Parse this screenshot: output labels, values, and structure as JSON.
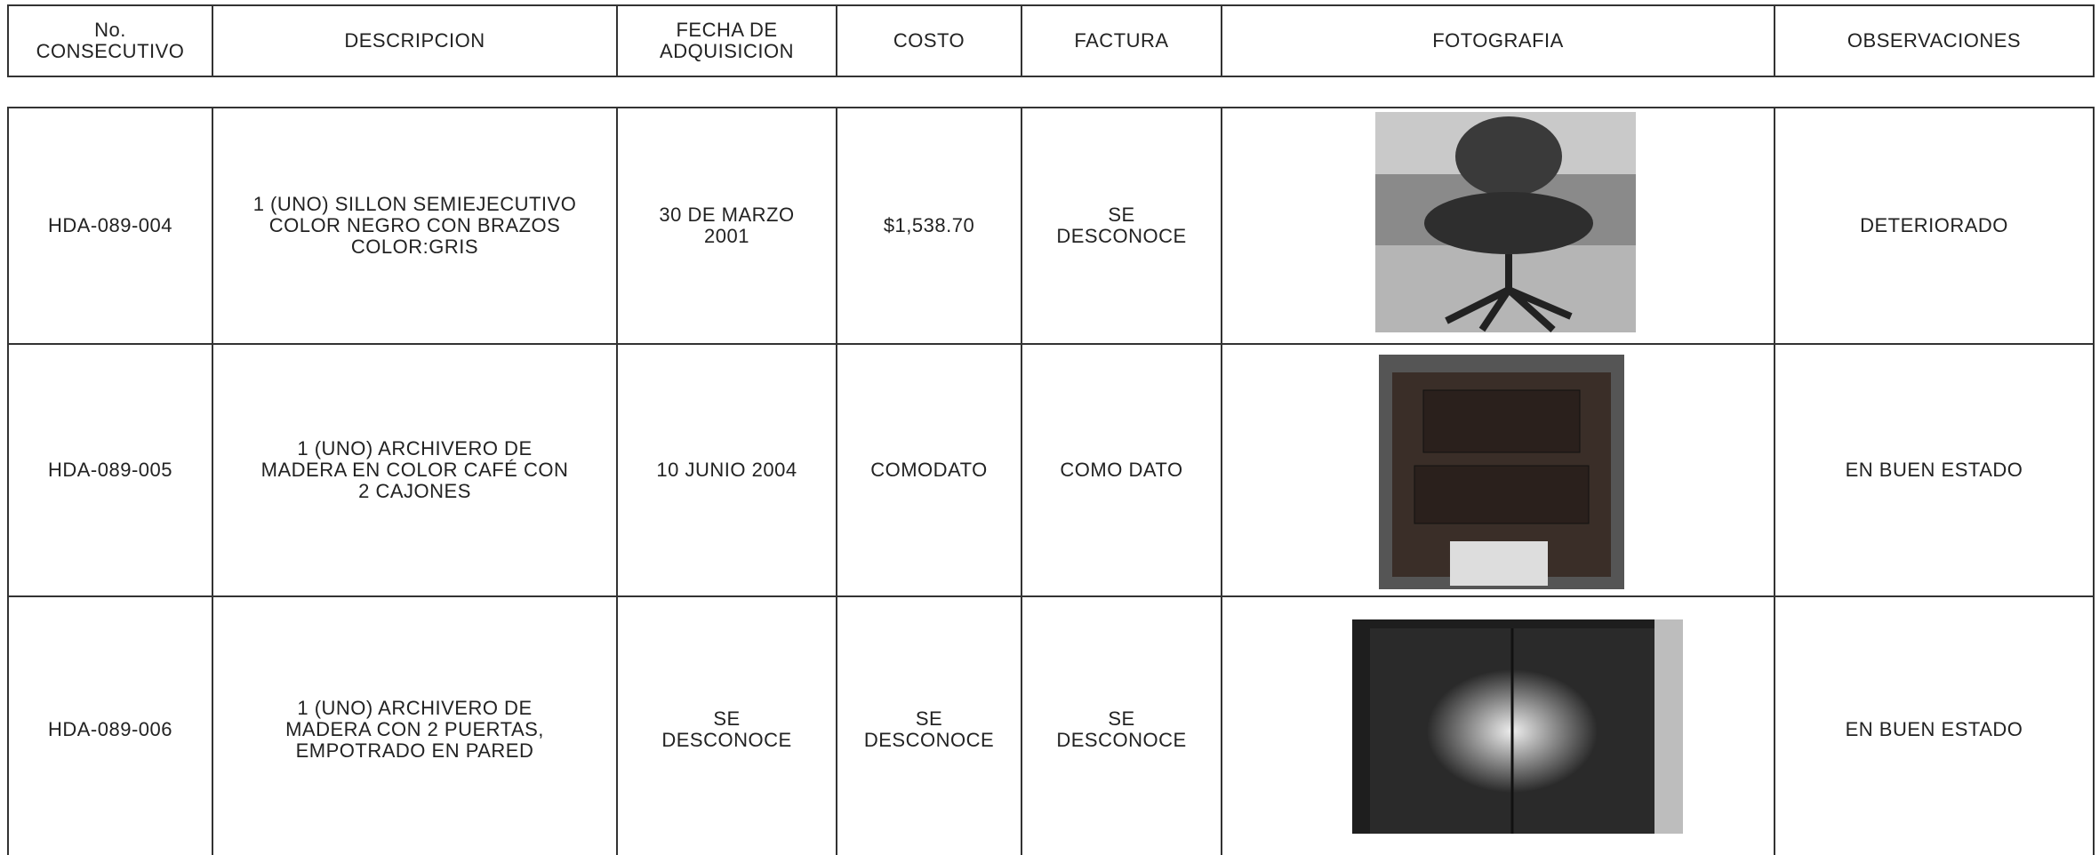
{
  "header": {
    "cells": [
      "No.\nCONSECUTIVO",
      "DESCRIPCION",
      "FECHA DE\nADQUISICION",
      "COSTO",
      "FACTURA",
      "FOTOGRAFIA",
      "OBSERVACIONES"
    ]
  },
  "rows": [
    {
      "consecutivo": "HDA-089-004",
      "descripcion": "1 (UNO) SILLON SEMIEJECUTIVO\nCOLOR NEGRO CON BRAZOS\nCOLOR:GRIS",
      "fecha": "30 DE MARZO\n2001",
      "costo": "$1,538.70",
      "factura": "SE\nDESCONOCE",
      "observaciones": "DETERIORADO"
    },
    {
      "consecutivo": "HDA-089-005",
      "descripcion": "1 (UNO) ARCHIVERO DE\nMADERA EN COLOR CAFÉ CON\n2 CAJONES",
      "fecha": "10 JUNIO 2004",
      "costo": "COMODATO",
      "factura": "COMO DATO",
      "observaciones": "EN BUEN ESTADO"
    },
    {
      "consecutivo": "HDA-089-006",
      "descripcion": "1 (UNO) ARCHIVERO DE\nMADERA CON 2 PUERTAS,\nEMPOTRADO EN PARED",
      "fecha": "SE\nDESCONOCE",
      "costo": "SE\nDESCONOCE",
      "factura": "SE\nDESCONOCE",
      "observaciones": "EN BUEN ESTADO"
    }
  ]
}
